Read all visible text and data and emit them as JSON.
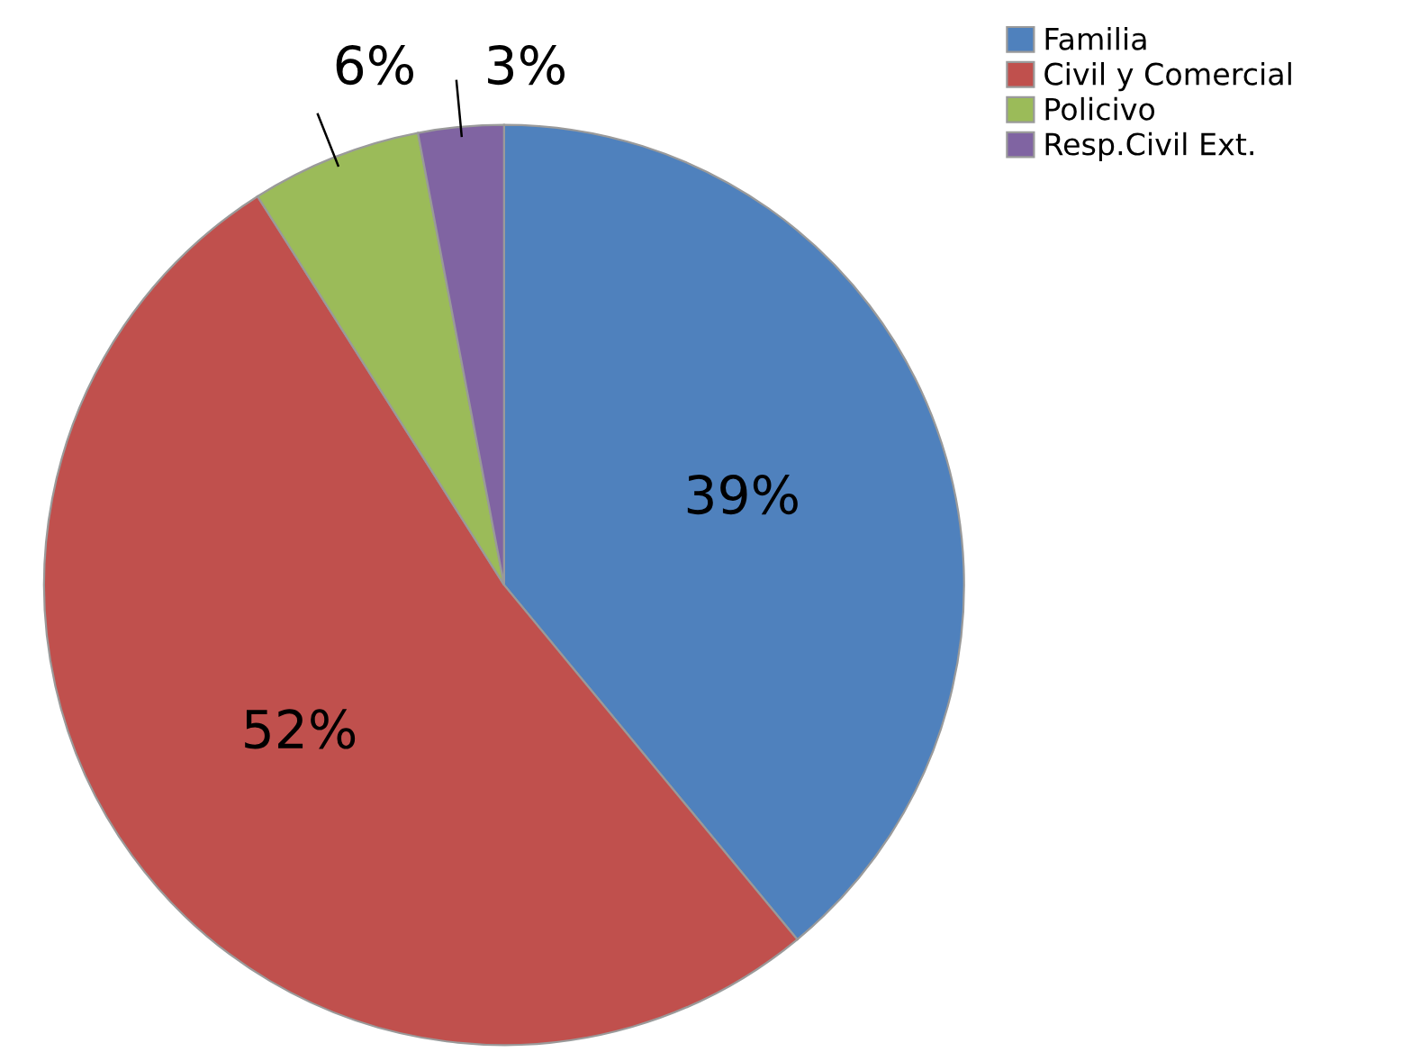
{
  "chart_data": {
    "type": "pie",
    "categories": [
      "Familia",
      "Civil y Comercial",
      "Policivo",
      "Resp.Civil Ext."
    ],
    "values": [
      39,
      52,
      6,
      3
    ],
    "colors": [
      "#4f81bd",
      "#c0504d",
      "#9bbb59",
      "#8064a2"
    ],
    "value_labels": [
      "39%",
      "52%",
      "6%",
      "3%"
    ],
    "legend": "top right"
  }
}
